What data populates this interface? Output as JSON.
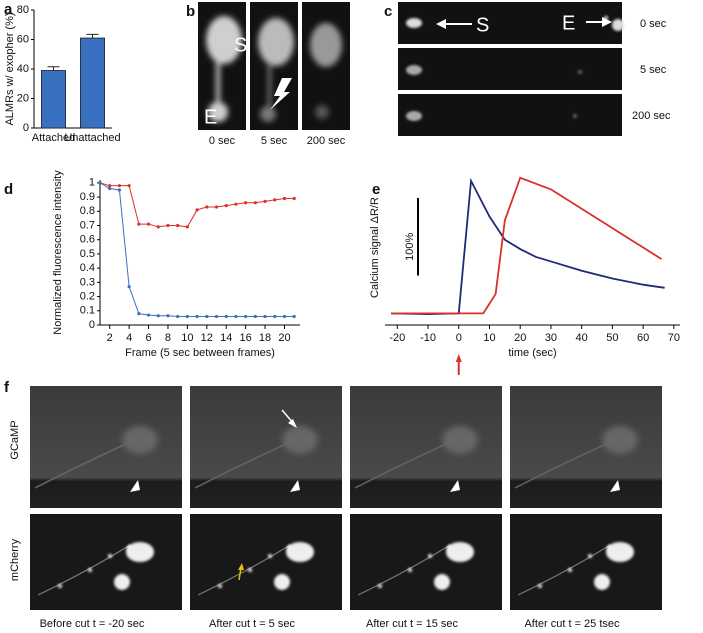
{
  "panel_labels": [
    "a",
    "b",
    "c",
    "d",
    "e",
    "f"
  ],
  "chart_data": [
    {
      "type": "bar",
      "y_label": "ALMRs w/ exopher (%)",
      "categories": [
        "Attached",
        "Unattached"
      ],
      "values": [
        39,
        61
      ],
      "errors": [
        2.5,
        2.5
      ],
      "color": "#3a70c0",
      "ylim": [
        0,
        80
      ],
      "yticks": [
        0,
        20,
        40,
        60,
        80
      ]
    },
    {
      "type": "line",
      "x_label": "Frame (5 sec between frames)",
      "y_label": "Normalized fluorescence intensity",
      "x": [
        1,
        2,
        3,
        4,
        5,
        6,
        7,
        8,
        9,
        10,
        11,
        12,
        13,
        14,
        15,
        16,
        17,
        18,
        19,
        20,
        21
      ],
      "series": [
        {
          "color": "#e0302a",
          "values": [
            1,
            0.98,
            0.98,
            0.98,
            0.71,
            0.71,
            0.69,
            0.7,
            0.7,
            0.69,
            0.81,
            0.83,
            0.83,
            0.84,
            0.85,
            0.86,
            0.86,
            0.87,
            0.88,
            0.89,
            0.89
          ]
        },
        {
          "color": "#3a70c0",
          "values": [
            1,
            0.96,
            0.95,
            0.27,
            0.08,
            0.07,
            0.065,
            0.065,
            0.06,
            0.06,
            0.06,
            0.06,
            0.06,
            0.06,
            0.06,
            0.06,
            0.06,
            0.06,
            0.06,
            0.06,
            0.06
          ]
        }
      ],
      "xlim": [
        1,
        21.6
      ],
      "xticks": [
        2,
        4,
        6,
        8,
        10,
        12,
        14,
        16,
        18,
        20
      ],
      "ylim": [
        0,
        1.02
      ],
      "yticks": [
        0,
        0.1,
        0.2,
        0.3,
        0.4,
        0.5,
        0.6,
        0.7,
        0.8,
        0.9,
        1
      ]
    },
    {
      "type": "line",
      "x_label": "time (sec)",
      "y_label": "Calcium signal ΔR/R",
      "series": [
        {
          "color": "#1f2a78",
          "x": [
            -22,
            -10,
            0,
            4,
            10,
            15,
            20,
            25,
            30,
            40,
            50,
            60,
            67
          ],
          "values": [
            5,
            4,
            5,
            176,
            130,
            100,
            88,
            78,
            72,
            60,
            50,
            42,
            38
          ]
        },
        {
          "color": "#d9302a",
          "x": [
            -22,
            0,
            8,
            12,
            15,
            20,
            30,
            40,
            50,
            60,
            66
          ],
          "values": [
            5,
            5,
            5,
            30,
            125,
            180,
            165,
            140,
            115,
            90,
            75
          ]
        }
      ],
      "xlim": [
        -24,
        72
      ],
      "xticks": [
        -20,
        -10,
        0,
        10,
        20,
        30,
        40,
        50,
        60,
        70
      ],
      "ylim": [
        -10,
        190
      ],
      "scale_bar": {
        "value": 100,
        "label": "100%"
      }
    }
  ],
  "images": {
    "b": {
      "captions": [
        "0 sec",
        "5 sec",
        "200 sec"
      ],
      "labels": [
        "S",
        "E"
      ]
    },
    "c": {
      "times": [
        "0 sec",
        "5 sec",
        "200 sec"
      ],
      "labels": [
        "S",
        "E"
      ]
    },
    "f": {
      "rows": [
        "GCaMP",
        "mCherry"
      ],
      "captions": [
        "Before cut t = -20 sec",
        "After cut t = 5 sec",
        "After cut t = 15 sec",
        "After cut t = 25 tsec"
      ]
    }
  }
}
